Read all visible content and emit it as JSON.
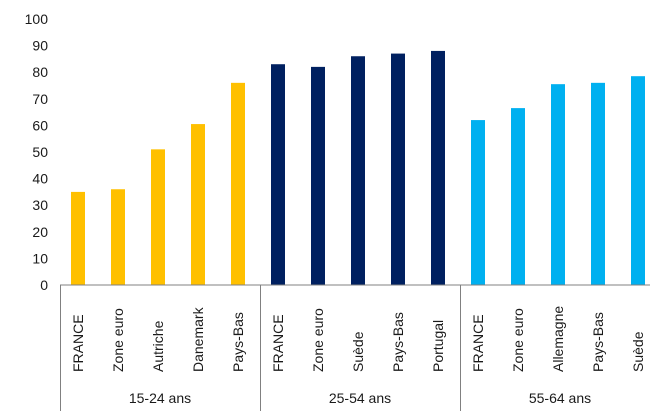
{
  "chart_data": {
    "type": "bar",
    "ylim": [
      0,
      100
    ],
    "yticks": [
      0,
      10,
      20,
      30,
      40,
      50,
      60,
      70,
      80,
      90,
      100
    ],
    "grid": false,
    "legend": "none",
    "groups": [
      {
        "label": "15-24 ans",
        "color": "#FFC000",
        "categories": [
          "FRANCE",
          "Zone euro",
          "Autriche",
          "Danemark",
          "Pays-Bas"
        ],
        "values": [
          35,
          36,
          51,
          60.5,
          76
        ]
      },
      {
        "label": "25-54 ans",
        "color": "#002060",
        "categories": [
          "FRANCE",
          "Zone euro",
          "Suède",
          "Pays-Bas",
          "Portugal"
        ],
        "values": [
          83,
          82,
          86,
          87,
          88
        ]
      },
      {
        "label": "55-64 ans",
        "color": "#00B0F0",
        "categories": [
          "FRANCE",
          "Zone euro",
          "Allemagne",
          "Pays-Bas",
          "Suède"
        ],
        "values": [
          62,
          66.5,
          75.5,
          76,
          78.5
        ]
      }
    ]
  }
}
